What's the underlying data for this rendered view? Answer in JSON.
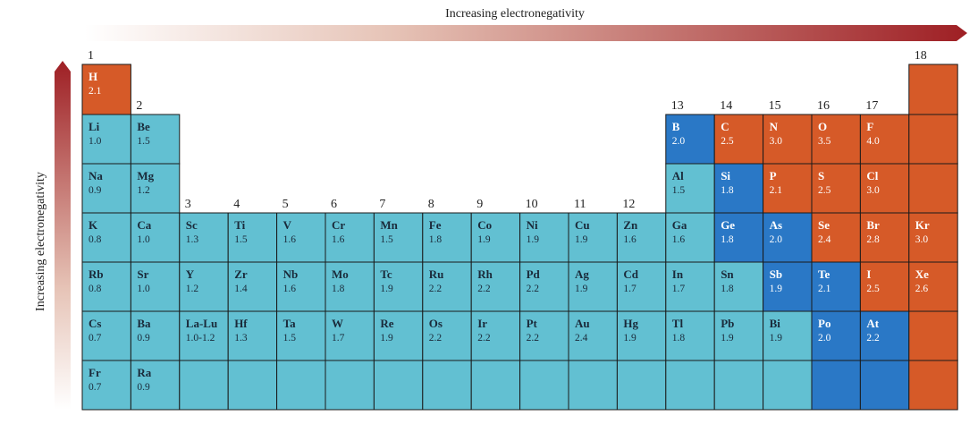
{
  "title_top": "Increasing electronegativity",
  "title_left": "Increasing electronegativity",
  "colors": {
    "light": "#62c0d2",
    "blue": "#2a78c6",
    "orange": "#d65a28",
    "border": "#1a1a1a",
    "arrow": "#9e1f24",
    "text_dark": "#1a2a3a",
    "text_light": "#ffffff"
  },
  "group_labels": [
    {
      "col": 1,
      "row": 0,
      "text": "1"
    },
    {
      "col": 18,
      "row": 0,
      "text": "18"
    },
    {
      "col": 2,
      "row": 1,
      "text": "2"
    },
    {
      "col": 13,
      "row": 1,
      "text": "13"
    },
    {
      "col": 14,
      "row": 1,
      "text": "14"
    },
    {
      "col": 15,
      "row": 1,
      "text": "15"
    },
    {
      "col": 16,
      "row": 1,
      "text": "16"
    },
    {
      "col": 17,
      "row": 1,
      "text": "17"
    },
    {
      "col": 3,
      "row": 3,
      "text": "3"
    },
    {
      "col": 4,
      "row": 3,
      "text": "4"
    },
    {
      "col": 5,
      "row": 3,
      "text": "5"
    },
    {
      "col": 6,
      "row": 3,
      "text": "6"
    },
    {
      "col": 7,
      "row": 3,
      "text": "7"
    },
    {
      "col": 8,
      "row": 3,
      "text": "8"
    },
    {
      "col": 9,
      "row": 3,
      "text": "9"
    },
    {
      "col": 10,
      "row": 3,
      "text": "10"
    },
    {
      "col": 11,
      "row": 3,
      "text": "11"
    },
    {
      "col": 12,
      "row": 3,
      "text": "12"
    }
  ],
  "elements": [
    {
      "sym": "H",
      "en": "2.1",
      "col": 1,
      "row": 1,
      "c": "orange"
    },
    {
      "sym": "",
      "en": "",
      "col": 18,
      "row": 1,
      "c": "orange"
    },
    {
      "sym": "Li",
      "en": "1.0",
      "col": 1,
      "row": 2,
      "c": "light"
    },
    {
      "sym": "Be",
      "en": "1.5",
      "col": 2,
      "row": 2,
      "c": "light"
    },
    {
      "sym": "B",
      "en": "2.0",
      "col": 13,
      "row": 2,
      "c": "blue"
    },
    {
      "sym": "C",
      "en": "2.5",
      "col": 14,
      "row": 2,
      "c": "orange"
    },
    {
      "sym": "N",
      "en": "3.0",
      "col": 15,
      "row": 2,
      "c": "orange"
    },
    {
      "sym": "O",
      "en": "3.5",
      "col": 16,
      "row": 2,
      "c": "orange"
    },
    {
      "sym": "F",
      "en": "4.0",
      "col": 17,
      "row": 2,
      "c": "orange"
    },
    {
      "sym": "",
      "en": "",
      "col": 18,
      "row": 2,
      "c": "orange"
    },
    {
      "sym": "Na",
      "en": "0.9",
      "col": 1,
      "row": 3,
      "c": "light"
    },
    {
      "sym": "Mg",
      "en": "1.2",
      "col": 2,
      "row": 3,
      "c": "light"
    },
    {
      "sym": "Al",
      "en": "1.5",
      "col": 13,
      "row": 3,
      "c": "light"
    },
    {
      "sym": "Si",
      "en": "1.8",
      "col": 14,
      "row": 3,
      "c": "blue"
    },
    {
      "sym": "P",
      "en": "2.1",
      "col": 15,
      "row": 3,
      "c": "orange"
    },
    {
      "sym": "S",
      "en": "2.5",
      "col": 16,
      "row": 3,
      "c": "orange"
    },
    {
      "sym": "Cl",
      "en": "3.0",
      "col": 17,
      "row": 3,
      "c": "orange"
    },
    {
      "sym": "",
      "en": "",
      "col": 18,
      "row": 3,
      "c": "orange"
    },
    {
      "sym": "K",
      "en": "0.8",
      "col": 1,
      "row": 4,
      "c": "light"
    },
    {
      "sym": "Ca",
      "en": "1.0",
      "col": 2,
      "row": 4,
      "c": "light"
    },
    {
      "sym": "Sc",
      "en": "1.3",
      "col": 3,
      "row": 4,
      "c": "light"
    },
    {
      "sym": "Ti",
      "en": "1.5",
      "col": 4,
      "row": 4,
      "c": "light"
    },
    {
      "sym": "V",
      "en": "1.6",
      "col": 5,
      "row": 4,
      "c": "light"
    },
    {
      "sym": "Cr",
      "en": "1.6",
      "col": 6,
      "row": 4,
      "c": "light"
    },
    {
      "sym": "Mn",
      "en": "1.5",
      "col": 7,
      "row": 4,
      "c": "light"
    },
    {
      "sym": "Fe",
      "en": "1.8",
      "col": 8,
      "row": 4,
      "c": "light"
    },
    {
      "sym": "Co",
      "en": "1.9",
      "col": 9,
      "row": 4,
      "c": "light"
    },
    {
      "sym": "Ni",
      "en": "1.9",
      "col": 10,
      "row": 4,
      "c": "light"
    },
    {
      "sym": "Cu",
      "en": "1.9",
      "col": 11,
      "row": 4,
      "c": "light"
    },
    {
      "sym": "Zn",
      "en": "1.6",
      "col": 12,
      "row": 4,
      "c": "light"
    },
    {
      "sym": "Ga",
      "en": "1.6",
      "col": 13,
      "row": 4,
      "c": "light"
    },
    {
      "sym": "Ge",
      "en": "1.8",
      "col": 14,
      "row": 4,
      "c": "blue"
    },
    {
      "sym": "As",
      "en": "2.0",
      "col": 15,
      "row": 4,
      "c": "blue"
    },
    {
      "sym": "Se",
      "en": "2.4",
      "col": 16,
      "row": 4,
      "c": "orange"
    },
    {
      "sym": "Br",
      "en": "2.8",
      "col": 17,
      "row": 4,
      "c": "orange"
    },
    {
      "sym": "Kr",
      "en": "3.0",
      "col": 18,
      "row": 4,
      "c": "orange"
    },
    {
      "sym": "Rb",
      "en": "0.8",
      "col": 1,
      "row": 5,
      "c": "light"
    },
    {
      "sym": "Sr",
      "en": "1.0",
      "col": 2,
      "row": 5,
      "c": "light"
    },
    {
      "sym": "Y",
      "en": "1.2",
      "col": 3,
      "row": 5,
      "c": "light"
    },
    {
      "sym": "Zr",
      "en": "1.4",
      "col": 4,
      "row": 5,
      "c": "light"
    },
    {
      "sym": "Nb",
      "en": "1.6",
      "col": 5,
      "row": 5,
      "c": "light"
    },
    {
      "sym": "Mo",
      "en": "1.8",
      "col": 6,
      "row": 5,
      "c": "light"
    },
    {
      "sym": "Tc",
      "en": "1.9",
      "col": 7,
      "row": 5,
      "c": "light"
    },
    {
      "sym": "Ru",
      "en": "2.2",
      "col": 8,
      "row": 5,
      "c": "light"
    },
    {
      "sym": "Rh",
      "en": "2.2",
      "col": 9,
      "row": 5,
      "c": "light"
    },
    {
      "sym": "Pd",
      "en": "2.2",
      "col": 10,
      "row": 5,
      "c": "light"
    },
    {
      "sym": "Ag",
      "en": "1.9",
      "col": 11,
      "row": 5,
      "c": "light"
    },
    {
      "sym": "Cd",
      "en": "1.7",
      "col": 12,
      "row": 5,
      "c": "light"
    },
    {
      "sym": "In",
      "en": "1.7",
      "col": 13,
      "row": 5,
      "c": "light"
    },
    {
      "sym": "Sn",
      "en": "1.8",
      "col": 14,
      "row": 5,
      "c": "light"
    },
    {
      "sym": "Sb",
      "en": "1.9",
      "col": 15,
      "row": 5,
      "c": "blue"
    },
    {
      "sym": "Te",
      "en": "2.1",
      "col": 16,
      "row": 5,
      "c": "blue"
    },
    {
      "sym": "I",
      "en": "2.5",
      "col": 17,
      "row": 5,
      "c": "orange"
    },
    {
      "sym": "Xe",
      "en": "2.6",
      "col": 18,
      "row": 5,
      "c": "orange"
    },
    {
      "sym": "Cs",
      "en": "0.7",
      "col": 1,
      "row": 6,
      "c": "light"
    },
    {
      "sym": "Ba",
      "en": "0.9",
      "col": 2,
      "row": 6,
      "c": "light"
    },
    {
      "sym": "La-Lu",
      "en": "1.0-1.2",
      "col": 3,
      "row": 6,
      "c": "light"
    },
    {
      "sym": "Hf",
      "en": "1.3",
      "col": 4,
      "row": 6,
      "c": "light"
    },
    {
      "sym": "Ta",
      "en": "1.5",
      "col": 5,
      "row": 6,
      "c": "light"
    },
    {
      "sym": "W",
      "en": "1.7",
      "col": 6,
      "row": 6,
      "c": "light"
    },
    {
      "sym": "Re",
      "en": "1.9",
      "col": 7,
      "row": 6,
      "c": "light"
    },
    {
      "sym": "Os",
      "en": "2.2",
      "col": 8,
      "row": 6,
      "c": "light"
    },
    {
      "sym": "Ir",
      "en": "2.2",
      "col": 9,
      "row": 6,
      "c": "light"
    },
    {
      "sym": "Pt",
      "en": "2.2",
      "col": 10,
      "row": 6,
      "c": "light"
    },
    {
      "sym": "Au",
      "en": "2.4",
      "col": 11,
      "row": 6,
      "c": "light"
    },
    {
      "sym": "Hg",
      "en": "1.9",
      "col": 12,
      "row": 6,
      "c": "light"
    },
    {
      "sym": "Tl",
      "en": "1.8",
      "col": 13,
      "row": 6,
      "c": "light"
    },
    {
      "sym": "Pb",
      "en": "1.9",
      "col": 14,
      "row": 6,
      "c": "light"
    },
    {
      "sym": "Bi",
      "en": "1.9",
      "col": 15,
      "row": 6,
      "c": "light"
    },
    {
      "sym": "Po",
      "en": "2.0",
      "col": 16,
      "row": 6,
      "c": "blue"
    },
    {
      "sym": "At",
      "en": "2.2",
      "col": 17,
      "row": 6,
      "c": "blue"
    },
    {
      "sym": "",
      "en": "",
      "col": 18,
      "row": 6,
      "c": "orange"
    },
    {
      "sym": "Fr",
      "en": "0.7",
      "col": 1,
      "row": 7,
      "c": "light"
    },
    {
      "sym": "Ra",
      "en": "0.9",
      "col": 2,
      "row": 7,
      "c": "light"
    },
    {
      "sym": "",
      "en": "",
      "col": 3,
      "row": 7,
      "c": "light"
    },
    {
      "sym": "",
      "en": "",
      "col": 4,
      "row": 7,
      "c": "light"
    },
    {
      "sym": "",
      "en": "",
      "col": 5,
      "row": 7,
      "c": "light"
    },
    {
      "sym": "",
      "en": "",
      "col": 6,
      "row": 7,
      "c": "light"
    },
    {
      "sym": "",
      "en": "",
      "col": 7,
      "row": 7,
      "c": "light"
    },
    {
      "sym": "",
      "en": "",
      "col": 8,
      "row": 7,
      "c": "light"
    },
    {
      "sym": "",
      "en": "",
      "col": 9,
      "row": 7,
      "c": "light"
    },
    {
      "sym": "",
      "en": "",
      "col": 10,
      "row": 7,
      "c": "light"
    },
    {
      "sym": "",
      "en": "",
      "col": 11,
      "row": 7,
      "c": "light"
    },
    {
      "sym": "",
      "en": "",
      "col": 12,
      "row": 7,
      "c": "light"
    },
    {
      "sym": "",
      "en": "",
      "col": 13,
      "row": 7,
      "c": "light"
    },
    {
      "sym": "",
      "en": "",
      "col": 14,
      "row": 7,
      "c": "light"
    },
    {
      "sym": "",
      "en": "",
      "col": 15,
      "row": 7,
      "c": "light"
    },
    {
      "sym": "",
      "en": "",
      "col": 16,
      "row": 7,
      "c": "blue"
    },
    {
      "sym": "",
      "en": "",
      "col": 17,
      "row": 7,
      "c": "blue"
    },
    {
      "sym": "",
      "en": "",
      "col": 18,
      "row": 7,
      "c": "orange"
    }
  ]
}
